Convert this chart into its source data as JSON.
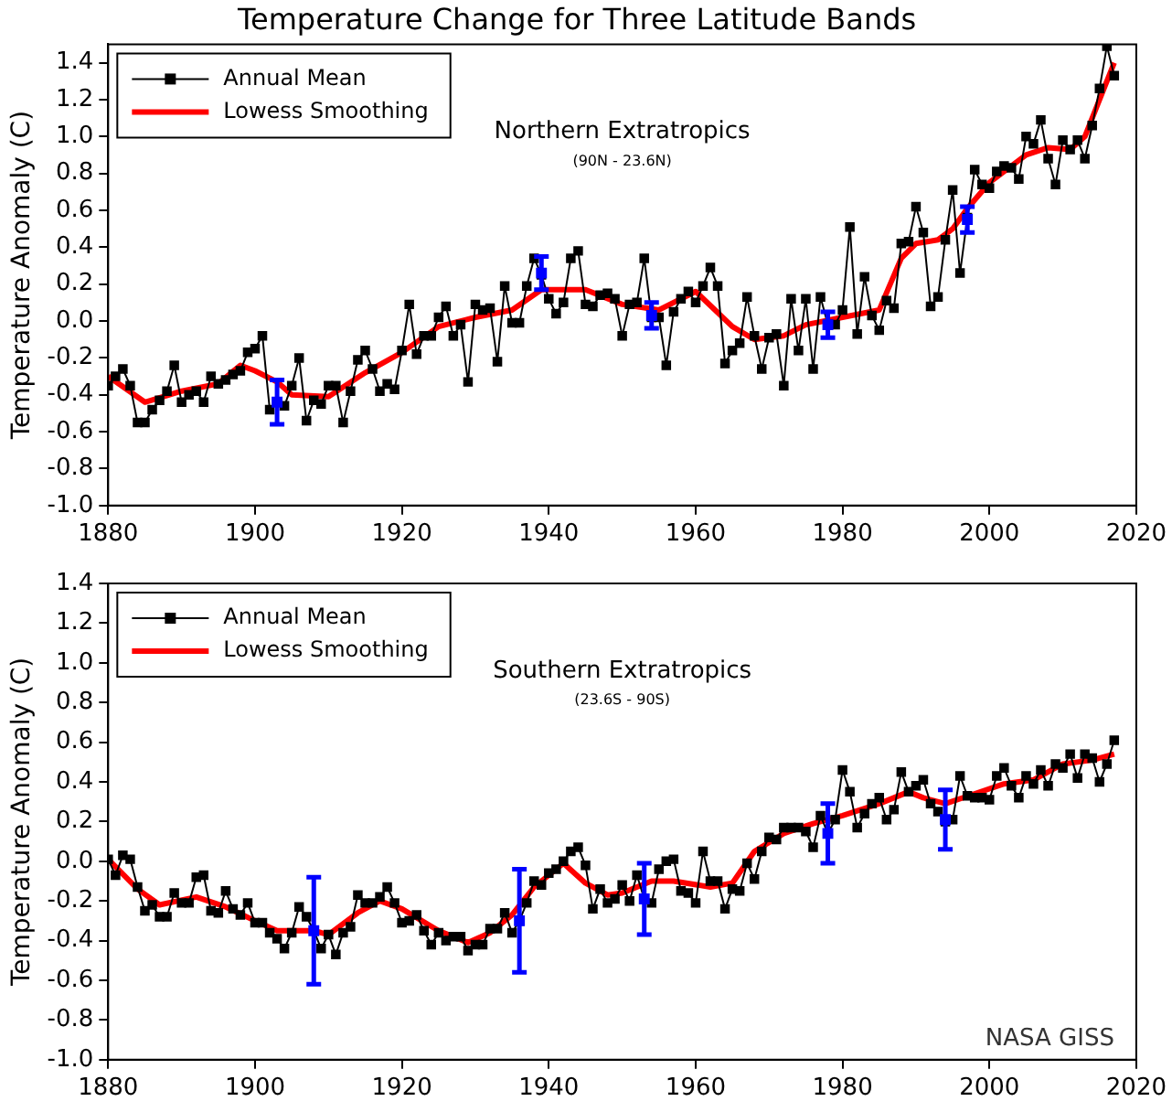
{
  "chart_data": [
    {
      "type": "line",
      "title": "Temperature Change for Three Latitude Bands",
      "ylabel": "Temperature Anomaly (C)",
      "annotations": [
        "Northern Extratropics",
        "(90N - 23.6N)"
      ],
      "xlim": [
        1880,
        2020
      ],
      "xticks": [
        1880,
        1900,
        1920,
        1940,
        1960,
        1980,
        2000,
        2020
      ],
      "ylim": [
        -1,
        1.5
      ],
      "yticks": [
        {
          "value": -1,
          "label": "-1.0"
        },
        -0.8,
        -0.6,
        -0.4,
        -0.2,
        {
          "value": 0,
          "label": "0.0"
        },
        0.2,
        0.4,
        0.6,
        0.8,
        {
          "value": 1,
          "label": "1.0"
        },
        1.2,
        1.4
      ],
      "grid": false,
      "legend": "top left",
      "series": [
        {
          "name": "Annual Mean",
          "type": "line",
          "color": "#000000",
          "marker": "square",
          "x": [
            1880,
            1881,
            1882,
            1883,
            1884,
            1885,
            1886,
            1887,
            1888,
            1889,
            1890,
            1891,
            1892,
            1893,
            1894,
            1895,
            1896,
            1897,
            1898,
            1899,
            1900,
            1901,
            1902,
            1903,
            1904,
            1905,
            1906,
            1907,
            1908,
            1909,
            1910,
            1911,
            1912,
            1913,
            1914,
            1915,
            1916,
            1917,
            1918,
            1919,
            1920,
            1921,
            1922,
            1923,
            1924,
            1925,
            1926,
            1927,
            1928,
            1929,
            1930,
            1931,
            1932,
            1933,
            1934,
            1935,
            1936,
            1937,
            1938,
            1939,
            1940,
            1941,
            1942,
            1943,
            1944,
            1945,
            1946,
            1947,
            1948,
            1949,
            1950,
            1951,
            1952,
            1953,
            1954,
            1955,
            1956,
            1957,
            1958,
            1959,
            1960,
            1961,
            1962,
            1963,
            1964,
            1965,
            1966,
            1967,
            1968,
            1969,
            1970,
            1971,
            1972,
            1973,
            1974,
            1975,
            1976,
            1977,
            1978,
            1979,
            1980,
            1981,
            1982,
            1983,
            1984,
            1985,
            1986,
            1987,
            1988,
            1989,
            1990,
            1991,
            1992,
            1993,
            1994,
            1995,
            1996,
            1997,
            1998,
            1999,
            2000,
            2001,
            2002,
            2003,
            2004,
            2005,
            2006,
            2007,
            2008,
            2009,
            2010,
            2011,
            2012,
            2013,
            2014,
            2015,
            2016,
            2017
          ],
          "values": [
            -0.35,
            -0.3,
            -0.26,
            -0.35,
            -0.55,
            -0.55,
            -0.48,
            -0.43,
            -0.38,
            -0.24,
            -0.44,
            -0.4,
            -0.38,
            -0.44,
            -0.3,
            -0.34,
            -0.32,
            -0.29,
            -0.27,
            -0.17,
            -0.15,
            -0.08,
            -0.48,
            -0.44,
            -0.46,
            -0.35,
            -0.2,
            -0.54,
            -0.43,
            -0.45,
            -0.35,
            -0.35,
            -0.55,
            -0.38,
            -0.21,
            -0.16,
            -0.26,
            -0.38,
            -0.34,
            -0.37,
            -0.16,
            0.09,
            -0.18,
            -0.08,
            -0.08,
            0.02,
            0.08,
            -0.08,
            -0.02,
            -0.33,
            0.09,
            0.06,
            0.07,
            -0.22,
            0.19,
            -0.01,
            -0.01,
            0.19,
            0.34,
            0.25,
            0.12,
            0.04,
            0.1,
            0.34,
            0.38,
            0.09,
            0.08,
            0.14,
            0.15,
            0.12,
            -0.08,
            0.09,
            0.1,
            0.34,
            0.02,
            0.02,
            -0.24,
            0.05,
            0.12,
            0.16,
            0.1,
            0.19,
            0.29,
            0.19,
            -0.23,
            -0.16,
            -0.12,
            0.13,
            -0.08,
            -0.26,
            -0.09,
            -0.07,
            -0.35,
            0.12,
            -0.16,
            0.12,
            -0.26,
            0.13,
            -0.02,
            -0.02,
            0.06,
            0.51,
            -0.07,
            0.24,
            0.03,
            -0.05,
            0.11,
            0.07,
            0.42,
            0.43,
            0.62,
            0.48,
            0.08,
            0.13,
            0.44,
            0.71,
            0.26,
            0.56,
            0.82,
            0.74,
            0.72,
            0.81,
            0.84,
            0.83,
            0.77,
            1.0,
            0.96,
            1.09,
            0.88,
            0.74,
            0.98,
            0.93,
            0.98,
            0.88,
            1.06,
            1.26,
            1.49,
            1.33
          ]
        },
        {
          "name": "Lowess Smoothing",
          "type": "line",
          "color": "#ff0000",
          "marker": "none",
          "x": [
            1880,
            1885,
            1890,
            1895,
            1898,
            1900,
            1903,
            1905,
            1910,
            1915,
            1920,
            1925,
            1930,
            1935,
            1939,
            1945,
            1950,
            1955,
            1960,
            1965,
            1968,
            1972,
            1975,
            1980,
            1985,
            1988,
            1990,
            1993,
            1995,
            1997,
            2000,
            2005,
            2008,
            2011,
            2013,
            2015,
            2017
          ],
          "values": [
            -0.3,
            -0.44,
            -0.38,
            -0.34,
            -0.24,
            -0.27,
            -0.33,
            -0.4,
            -0.41,
            -0.28,
            -0.17,
            -0.03,
            0.02,
            0.06,
            0.17,
            0.17,
            0.09,
            0.06,
            0.16,
            -0.03,
            -0.1,
            -0.08,
            -0.02,
            0.02,
            0.06,
            0.34,
            0.42,
            0.44,
            0.5,
            0.61,
            0.75,
            0.9,
            0.94,
            0.93,
            1.0,
            1.2,
            1.4
          ]
        },
        {
          "type": "scatter",
          "color": "#0000ff",
          "marker": "square",
          "x": [
            1903,
            1939,
            1954,
            1978,
            1997
          ],
          "values": [
            -0.44,
            0.26,
            0.03,
            -0.02,
            0.55
          ],
          "errors": [
            0.12,
            0.09,
            0.07,
            0.07,
            0.07
          ]
        }
      ]
    },
    {
      "type": "line",
      "ylabel": "Temperature Anomaly (C)",
      "annotations": [
        "Southern Extratropics",
        "(23.6S - 90S)",
        "NASA GISS"
      ],
      "xlim": [
        1880,
        2020
      ],
      "xticks": [
        1880,
        1900,
        1920,
        1940,
        1960,
        1980,
        2000,
        2020
      ],
      "ylim": [
        -1,
        1.4
      ],
      "yticks": [
        {
          "value": -1,
          "label": "-1.0"
        },
        -0.8,
        -0.6,
        -0.4,
        -0.2,
        {
          "value": 0,
          "label": "0.0"
        },
        0.2,
        0.4,
        0.6,
        0.8,
        {
          "value": 1,
          "label": "1.0"
        },
        1.2,
        1.4
      ],
      "grid": false,
      "legend": "top left",
      "series": [
        {
          "name": "Annual Mean",
          "type": "line",
          "color": "#000000",
          "marker": "square",
          "x": [
            1880,
            1881,
            1882,
            1883,
            1884,
            1885,
            1886,
            1887,
            1888,
            1889,
            1890,
            1891,
            1892,
            1893,
            1894,
            1895,
            1896,
            1897,
            1898,
            1899,
            1900,
            1901,
            1902,
            1903,
            1904,
            1905,
            1906,
            1907,
            1908,
            1909,
            1910,
            1911,
            1912,
            1913,
            1914,
            1915,
            1916,
            1917,
            1918,
            1919,
            1920,
            1921,
            1922,
            1923,
            1924,
            1925,
            1926,
            1927,
            1928,
            1929,
            1930,
            1931,
            1932,
            1933,
            1934,
            1935,
            1936,
            1937,
            1938,
            1939,
            1940,
            1941,
            1942,
            1943,
            1944,
            1945,
            1946,
            1947,
            1948,
            1949,
            1950,
            1951,
            1952,
            1953,
            1954,
            1955,
            1956,
            1957,
            1958,
            1959,
            1960,
            1961,
            1962,
            1963,
            1964,
            1965,
            1966,
            1967,
            1968,
            1969,
            1970,
            1971,
            1972,
            1973,
            1974,
            1975,
            1976,
            1977,
            1978,
            1979,
            1980,
            1981,
            1982,
            1983,
            1984,
            1985,
            1986,
            1987,
            1988,
            1989,
            1990,
            1991,
            1992,
            1993,
            1994,
            1995,
            1996,
            1997,
            1998,
            1999,
            2000,
            2001,
            2002,
            2003,
            2004,
            2005,
            2006,
            2007,
            2008,
            2009,
            2010,
            2011,
            2012,
            2013,
            2014,
            2015,
            2016,
            2017
          ],
          "values": [
            0.01,
            -0.07,
            0.03,
            0.01,
            -0.13,
            -0.25,
            -0.22,
            -0.28,
            -0.28,
            -0.16,
            -0.21,
            -0.21,
            -0.08,
            -0.07,
            -0.25,
            -0.26,
            -0.15,
            -0.24,
            -0.27,
            -0.21,
            -0.31,
            -0.31,
            -0.36,
            -0.39,
            -0.44,
            -0.36,
            -0.23,
            -0.28,
            -0.35,
            -0.44,
            -0.37,
            -0.47,
            -0.36,
            -0.33,
            -0.17,
            -0.21,
            -0.21,
            -0.18,
            -0.13,
            -0.21,
            -0.31,
            -0.3,
            -0.27,
            -0.35,
            -0.42,
            -0.36,
            -0.4,
            -0.38,
            -0.38,
            -0.45,
            -0.42,
            -0.42,
            -0.34,
            -0.34,
            -0.26,
            -0.36,
            -0.3,
            -0.21,
            -0.1,
            -0.12,
            -0.06,
            -0.04,
            0.0,
            0.05,
            0.07,
            -0.02,
            -0.24,
            -0.14,
            -0.21,
            -0.19,
            -0.12,
            -0.2,
            -0.07,
            -0.19,
            -0.21,
            -0.04,
            0.0,
            0.01,
            -0.15,
            -0.16,
            -0.21,
            0.05,
            -0.1,
            -0.1,
            -0.24,
            -0.14,
            -0.15,
            -0.01,
            -0.09,
            0.05,
            0.12,
            0.11,
            0.17,
            0.17,
            0.17,
            0.15,
            0.07,
            0.23,
            0.14,
            0.21,
            0.46,
            0.35,
            0.17,
            0.24,
            0.29,
            0.32,
            0.21,
            0.26,
            0.45,
            0.35,
            0.38,
            0.41,
            0.29,
            0.25,
            0.2,
            0.21,
            0.43,
            0.33,
            0.32,
            0.32,
            0.31,
            0.43,
            0.47,
            0.38,
            0.32,
            0.43,
            0.39,
            0.46,
            0.38,
            0.49,
            0.47,
            0.54,
            0.42,
            0.54,
            0.52,
            0.4,
            0.49,
            0.61
          ]
        },
        {
          "name": "Lowess Smoothing",
          "type": "line",
          "color": "#ff0000",
          "marker": "none",
          "x": [
            1880,
            1884,
            1887,
            1892,
            1896,
            1900,
            1903,
            1908,
            1910,
            1914,
            1917,
            1920,
            1925,
            1929,
            1932,
            1935,
            1938,
            1942,
            1945,
            1948,
            1950,
            1954,
            1957,
            1962,
            1965,
            1968,
            1972,
            1976,
            1980,
            1985,
            1989,
            1991,
            1994,
            1998,
            2002,
            2006,
            2010,
            2014,
            2017
          ],
          "values": [
            0.01,
            -0.14,
            -0.22,
            -0.18,
            -0.23,
            -0.3,
            -0.35,
            -0.35,
            -0.37,
            -0.26,
            -0.2,
            -0.24,
            -0.35,
            -0.41,
            -0.36,
            -0.27,
            -0.13,
            -0.01,
            -0.11,
            -0.17,
            -0.16,
            -0.1,
            -0.1,
            -0.13,
            -0.11,
            0.05,
            0.14,
            0.19,
            0.23,
            0.29,
            0.35,
            0.32,
            0.29,
            0.34,
            0.39,
            0.41,
            0.49,
            0.51,
            0.54
          ]
        },
        {
          "type": "scatter",
          "color": "#0000ff",
          "marker": "square",
          "x": [
            1908,
            1936,
            1953,
            1978,
            1994
          ],
          "values": [
            -0.35,
            -0.3,
            -0.19,
            0.14,
            0.21
          ],
          "errors": [
            0.27,
            0.26,
            0.18,
            0.15,
            0.15
          ]
        }
      ]
    }
  ]
}
